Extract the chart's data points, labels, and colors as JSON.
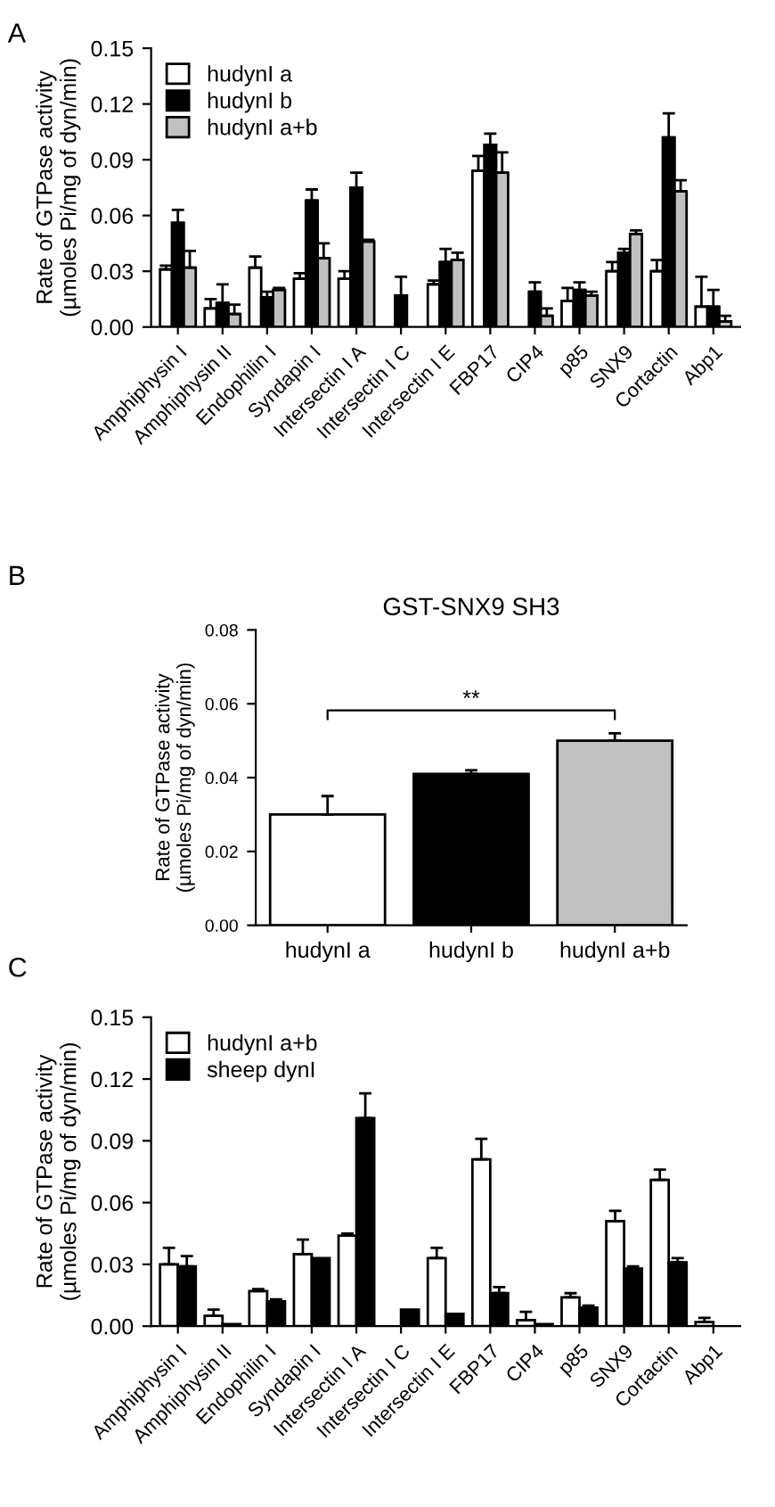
{
  "chart_data": [
    {
      "type": "bar",
      "annotations": [
        "A"
      ],
      "ylabel": "Rate of GTPase activity\n(µmoles Pi/mg of dyn/min)",
      "categories": [
        "Amphiphysin I",
        "Amphiphysin II",
        "Endophilin I",
        "Syndapin I",
        "Intersectin I A",
        "Intersectin I C",
        "Intersectin I E",
        "FBP17",
        "CIP4",
        "p85",
        "SNX9",
        "Cortactin",
        "Abp1"
      ],
      "series": [
        {
          "name": "hudynI a",
          "color": "#ffffff",
          "values": [
            0.031,
            0.01,
            0.032,
            0.026,
            0.026,
            null,
            0.023,
            0.084,
            null,
            0.014,
            0.03,
            0.03,
            0.011
          ],
          "errors": [
            [
              0.031,
              0.033
            ],
            [
              0.01,
              0.015
            ],
            [
              0.032,
              0.038
            ],
            [
              0.026,
              0.029
            ],
            [
              0.026,
              0.03
            ],
            null,
            [
              0.023,
              0.025
            ],
            [
              0.084,
              0.092
            ],
            null,
            [
              0.014,
              0.021
            ],
            [
              0.03,
              0.035
            ],
            [
              0.03,
              0.036
            ],
            [
              0.011,
              0.027
            ]
          ]
        },
        {
          "name": "hudynI b",
          "color": "#000000",
          "values": [
            0.056,
            0.013,
            0.016,
            0.068,
            0.075,
            0.017,
            0.035,
            0.098,
            0.019,
            0.02,
            0.04,
            0.102,
            0.011
          ],
          "errors": [
            [
              0.056,
              0.063
            ],
            [
              0.013,
              0.023
            ],
            [
              0.016,
              0.019
            ],
            [
              0.068,
              0.074
            ],
            [
              0.075,
              0.083
            ],
            [
              0.017,
              0.027
            ],
            [
              0.035,
              0.042
            ],
            [
              0.098,
              0.104
            ],
            [
              0.019,
              0.024
            ],
            [
              0.02,
              0.024
            ],
            [
              0.04,
              0.042
            ],
            [
              0.102,
              0.115
            ],
            [
              0.011,
              0.02
            ]
          ]
        },
        {
          "name": "hudynI a+b",
          "color": "#c0c0c0",
          "values": [
            0.032,
            0.007,
            0.02,
            0.037,
            0.046,
            null,
            0.036,
            0.083,
            0.006,
            0.017,
            0.05,
            0.073,
            0.003
          ],
          "errors": [
            [
              0.032,
              0.041
            ],
            [
              0.007,
              0.012
            ],
            [
              0.02,
              0.021
            ],
            [
              0.037,
              0.045
            ],
            [
              0.046,
              0.047
            ],
            null,
            [
              0.036,
              0.04
            ],
            [
              0.083,
              0.094
            ],
            [
              0.006,
              0.01
            ],
            [
              0.017,
              0.019
            ],
            [
              0.05,
              0.052
            ],
            [
              0.073,
              0.079
            ],
            [
              0.003,
              0.006
            ]
          ]
        }
      ],
      "ylim": [
        0,
        0.15
      ],
      "yticks": [
        {
          "value": 0,
          "label": "0.00"
        },
        {
          "value": 0.03,
          "label": "0.03"
        },
        {
          "value": 0.06,
          "label": "0.06"
        },
        {
          "value": 0.09,
          "label": "0.09"
        },
        {
          "value": 0.12,
          "label": "0.12"
        },
        {
          "value": 0.15,
          "label": "0.15"
        }
      ],
      "legend": "top left",
      "grid": false
    },
    {
      "type": "bar",
      "title": "GST-SNX9 SH3",
      "annotations": [
        "B",
        "**"
      ],
      "ylabel": "Rate of GTPase activity\n(µmoles Pi/mg of dyn/min)",
      "categories": [
        "hudynI a",
        "hudynI b",
        "hudynI a+b"
      ],
      "values": [
        0.03,
        0.041,
        0.05
      ],
      "colors": [
        "#ffffff",
        "#000000",
        "#c0c0c0"
      ],
      "errors": [
        [
          0.03,
          0.035
        ],
        [
          0.041,
          0.042
        ],
        [
          0.05,
          0.052
        ]
      ],
      "ylim": [
        0,
        0.08
      ],
      "yticks": [
        {
          "value": 0,
          "label": "0.00"
        },
        {
          "value": 0.02,
          "label": "0.02"
        },
        {
          "value": 0.04,
          "label": "0.04"
        },
        {
          "value": 0.06,
          "label": "0.06"
        },
        {
          "value": 0.08,
          "label": "0.08"
        }
      ],
      "legend": false,
      "grid": false
    },
    {
      "type": "bar",
      "annotations": [
        "C"
      ],
      "ylabel": "Rate of GTPase activity\n(µmoles Pi/mg of dyn/min)",
      "categories": [
        "Amphiphysin I",
        "Amphiphysin II",
        "Endophilin I",
        "Syndapin I",
        "Intersectin I A",
        "Intersectin I C",
        "Intersectin I E",
        "FBP17",
        "CIP4",
        "p85",
        "SNX9",
        "Cortactin",
        "Abp1"
      ],
      "series": [
        {
          "name": "hudynI a+b",
          "color": "#ffffff",
          "values": [
            0.03,
            0.005,
            0.017,
            0.035,
            0.044,
            null,
            0.033,
            0.081,
            0.003,
            0.014,
            0.051,
            0.071,
            0.002
          ],
          "errors": [
            [
              0.03,
              0.038
            ],
            [
              0.005,
              0.008
            ],
            [
              0.017,
              0.018
            ],
            [
              0.035,
              0.042
            ],
            [
              0.044,
              0.045
            ],
            null,
            [
              0.033,
              0.038
            ],
            [
              0.081,
              0.091
            ],
            [
              0.003,
              0.007
            ],
            [
              0.014,
              0.016
            ],
            [
              0.051,
              0.056
            ],
            [
              0.071,
              0.076
            ],
            [
              0.002,
              0.004
            ]
          ]
        },
        {
          "name": "sheep dynI",
          "color": "#000000",
          "values": [
            0.029,
            0.001,
            0.012,
            0.033,
            0.101,
            0.008,
            0.006,
            0.016,
            0.001,
            0.009,
            0.028,
            0.031,
            null
          ],
          "errors": [
            [
              0.029,
              0.034
            ],
            null,
            [
              0.012,
              0.013
            ],
            null,
            [
              0.101,
              0.113
            ],
            null,
            null,
            [
              0.016,
              0.019
            ],
            null,
            [
              0.009,
              0.01
            ],
            [
              0.028,
              0.029
            ],
            [
              0.031,
              0.033
            ],
            null
          ]
        }
      ],
      "ylim": [
        0,
        0.15
      ],
      "yticks": [
        {
          "value": 0,
          "label": "0.00"
        },
        {
          "value": 0.03,
          "label": "0.03"
        },
        {
          "value": 0.06,
          "label": "0.06"
        },
        {
          "value": 0.09,
          "label": "0.09"
        },
        {
          "value": 0.12,
          "label": "0.12"
        },
        {
          "value": 0.15,
          "label": "0.15"
        }
      ],
      "legend": "top left",
      "grid": false
    }
  ]
}
